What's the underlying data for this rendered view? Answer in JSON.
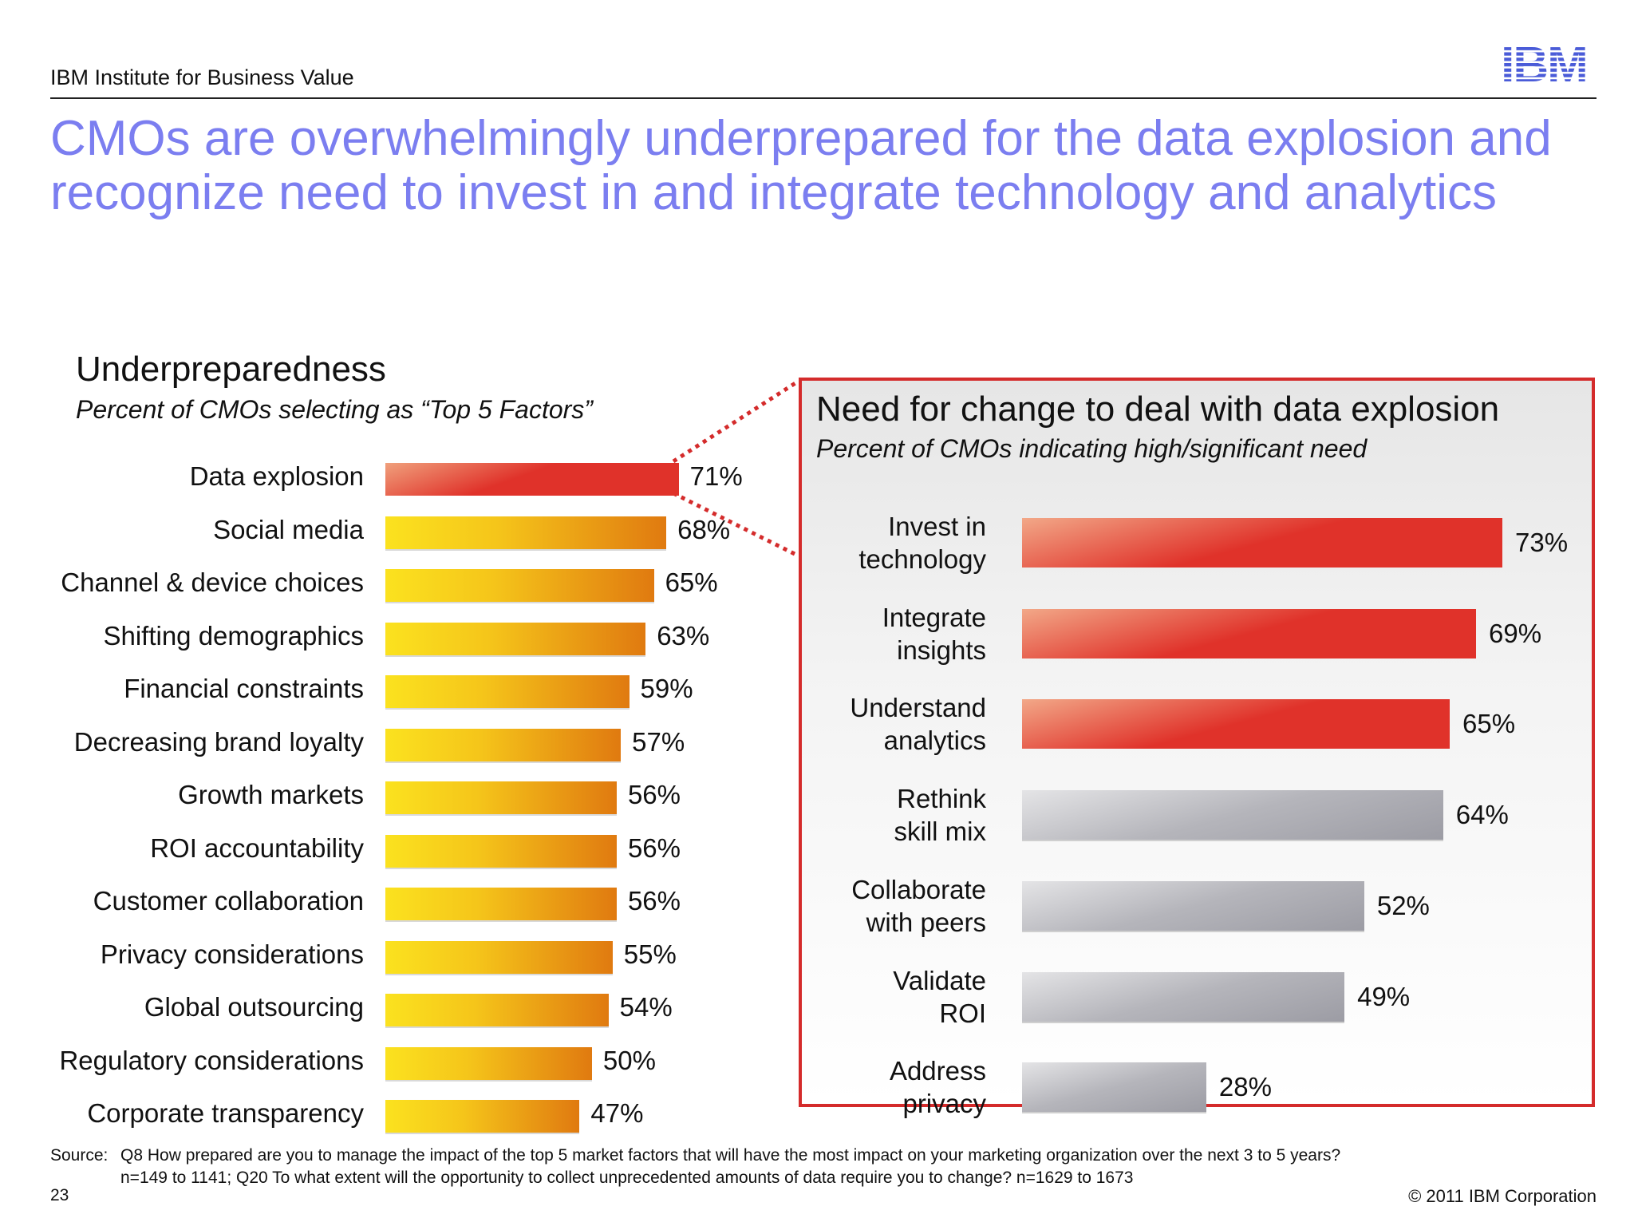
{
  "header": {
    "org": "IBM Institute for Business Value",
    "logo_text": "IBM"
  },
  "title": "CMOs are overwhelmingly underprepared for the data explosion and recognize need to invest in and integrate technology and analytics",
  "colors": {
    "title": "#7b7ef0",
    "highlight_red": "#e0322a",
    "yellow": "#fbe21f",
    "orange": "#e07a10",
    "gray": "#9c9ca4",
    "panel_border": "#d42b2b"
  },
  "chart_data": [
    {
      "type": "bar",
      "orientation": "horizontal",
      "title": "Underpreparedness",
      "subtitle": "Percent of CMOs selecting as “Top 5 Factors”",
      "categories": [
        "Data explosion",
        "Social media",
        "Channel & device choices",
        "Shifting demographics",
        "Financial constraints",
        "Decreasing brand loyalty",
        "Growth markets",
        "ROI accountability",
        "Customer collaboration",
        "Privacy considerations",
        "Global outsourcing",
        "Regulatory considerations",
        "Corporate transparency"
      ],
      "values": [
        71,
        68,
        65,
        63,
        59,
        57,
        56,
        56,
        56,
        55,
        54,
        50,
        47
      ],
      "value_labels": [
        "71%",
        "68%",
        "65%",
        "63%",
        "59%",
        "57%",
        "56%",
        "56%",
        "56%",
        "55%",
        "54%",
        "50%",
        "47%"
      ],
      "highlighted": [
        "Data explosion"
      ],
      "xlim": [
        0,
        100
      ]
    },
    {
      "type": "bar",
      "orientation": "horizontal",
      "title": "Need for change to deal with data explosion",
      "subtitle": "Percent of CMOs indicating high/significant need",
      "categories": [
        "Invest in\ntechnology",
        "Integrate\ninsights",
        "Understand\nanalytics",
        "Rethink\nskill mix",
        "Collaborate\nwith peers",
        "Validate\nROI",
        "Address\nprivacy"
      ],
      "values": [
        73,
        69,
        65,
        64,
        52,
        49,
        28
      ],
      "value_labels": [
        "73%",
        "69%",
        "65%",
        "64%",
        "52%",
        "49%",
        "28%"
      ],
      "highlighted": [
        "Invest in\ntechnology",
        "Integrate\ninsights",
        "Understand\nanalytics"
      ],
      "xlim": [
        0,
        100
      ]
    }
  ],
  "footer": {
    "source_label": "Source:",
    "source_line1": "Q8  How prepared are you to manage the impact of the top 5 market factors that will have the most impact on your marketing organization over the next 3 to 5 years?",
    "source_line2": "n=149 to 1141; Q20  To what extent will the opportunity to collect unprecedented amounts of data require you to change? n=1629 to 1673",
    "page_number": "23",
    "copyright": "© 2011 IBM Corporation"
  }
}
